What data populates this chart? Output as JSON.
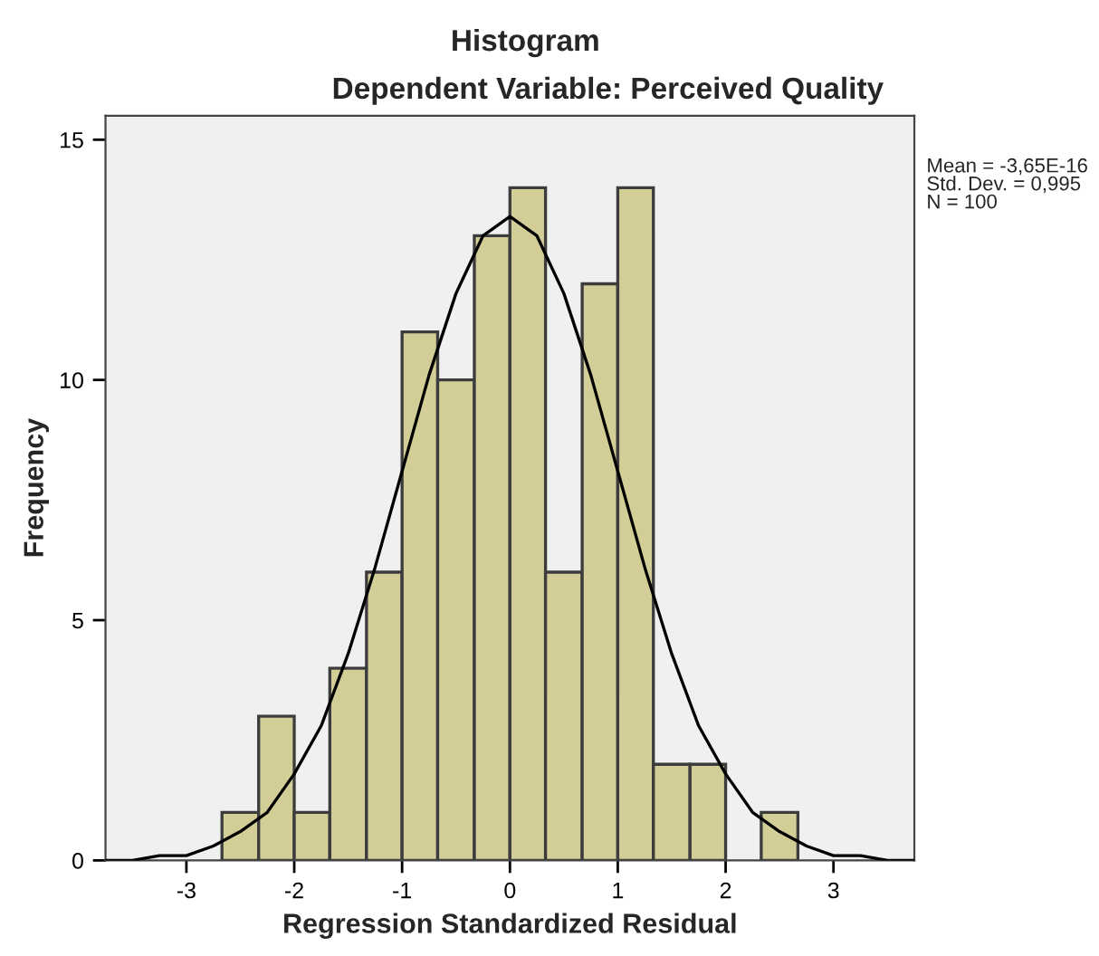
{
  "chart_data": {
    "type": "histogram",
    "title": "Histogram",
    "subtitle": "Dependent Variable: Perceived Quality",
    "xlabel": "Regression Standardized Residual",
    "ylabel": "Frequency",
    "bins": [
      -2.67,
      -2.33,
      -2,
      -1.67,
      -1.33,
      -1,
      -0.67,
      -0.33,
      0,
      0.33,
      0.67,
      1,
      1.33,
      1.67,
      2,
      2.33,
      2.67
    ],
    "values": [
      1,
      3,
      1,
      4,
      6,
      11,
      10,
      13,
      14,
      6,
      12,
      14,
      2,
      2,
      0,
      1
    ],
    "color": "#d3ce97",
    "series": [
      {
        "type": "line",
        "color": "#000000",
        "x": [
          -3.75,
          -3.5,
          -3.25,
          -3,
          -2.75,
          -2.5,
          -2.25,
          -2,
          -1.75,
          -1.5,
          -1.25,
          -1,
          -0.75,
          -0.5,
          -0.25,
          0,
          0.25,
          0.5,
          0.75,
          1,
          1.25,
          1.5,
          1.75,
          2,
          2.25,
          2.5,
          2.75,
          3,
          3.25,
          3.5,
          3.75
        ],
        "values": [
          0.0,
          0.0,
          0.1,
          0.1,
          0.3,
          0.6,
          1.0,
          1.8,
          2.8,
          4.3,
          6.1,
          8.1,
          10.1,
          11.8,
          13.0,
          13.4,
          13.0,
          11.8,
          10.1,
          8.1,
          6.1,
          4.3,
          2.8,
          1.8,
          1.0,
          0.6,
          0.3,
          0.1,
          0.1,
          0.0,
          0.0
        ]
      }
    ],
    "xlim": [
      -3.75,
      3.75
    ],
    "xticks": [
      -3,
      -2,
      -1,
      0,
      1,
      2,
      3
    ],
    "ylim": [
      0,
      15.5
    ],
    "yticks": [
      0,
      5,
      10,
      15
    ],
    "grid": false,
    "annotations": [
      "Mean = -3,65E-16\nStd. Dev. = 0,995\nN = 100"
    ]
  }
}
